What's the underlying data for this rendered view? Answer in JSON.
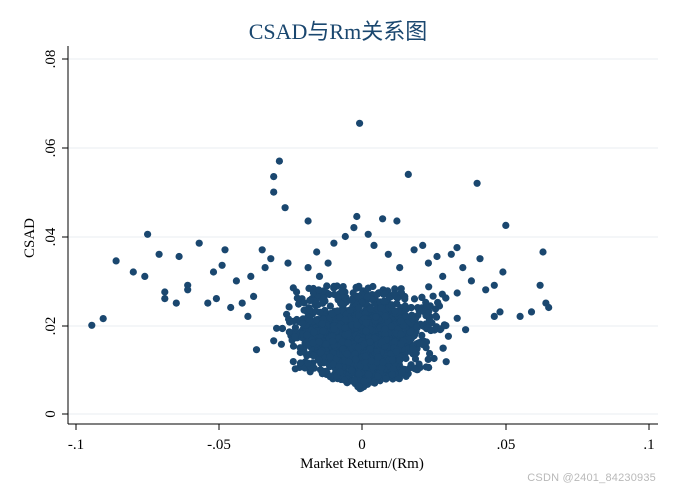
{
  "chart_data": {
    "type": "scatter",
    "title": "CSAD与Rm关系图",
    "xlabel": "Market Return/(Rm)",
    "ylabel": "CSAD",
    "xlim": [
      -0.1,
      0.1
    ],
    "ylim": [
      0,
      0.08
    ],
    "x_ticks": [
      "-.1",
      "-.05",
      "0",
      ".05",
      ".1"
    ],
    "y_ticks": [
      "0",
      ".02",
      ".04",
      ".06",
      ".08"
    ],
    "grid": true,
    "marker_color": "#1a476f",
    "grid_color": "#e8eef2",
    "points": [
      [
        -0.0945,
        0.02
      ],
      [
        -0.0905,
        0.0215
      ],
      [
        -0.086,
        0.0345
      ],
      [
        -0.08,
        0.032
      ],
      [
        -0.076,
        0.031
      ],
      [
        -0.075,
        0.0405
      ],
      [
        -0.071,
        0.036
      ],
      [
        -0.069,
        0.026
      ],
      [
        -0.069,
        0.0275
      ],
      [
        -0.065,
        0.025
      ],
      [
        -0.064,
        0.0355
      ],
      [
        -0.061,
        0.029
      ],
      [
        -0.061,
        0.028
      ],
      [
        -0.057,
        0.0385
      ],
      [
        -0.054,
        0.025
      ],
      [
        -0.052,
        0.032
      ],
      [
        -0.051,
        0.026
      ],
      [
        -0.049,
        0.0335
      ],
      [
        -0.048,
        0.037
      ],
      [
        -0.046,
        0.024
      ],
      [
        -0.044,
        0.03
      ],
      [
        -0.042,
        0.025
      ],
      [
        -0.04,
        0.022
      ],
      [
        -0.039,
        0.031
      ],
      [
        -0.038,
        0.0265
      ],
      [
        -0.035,
        0.037
      ],
      [
        -0.034,
        0.033
      ],
      [
        -0.032,
        0.035
      ],
      [
        -0.031,
        0.0535
      ],
      [
        -0.031,
        0.05
      ],
      [
        -0.029,
        0.057
      ],
      [
        -0.027,
        0.0465
      ],
      [
        -0.026,
        0.034
      ],
      [
        -0.023,
        0.0275
      ],
      [
        -0.019,
        0.0435
      ],
      [
        -0.019,
        0.033
      ],
      [
        -0.016,
        0.0365
      ],
      [
        -0.015,
        0.031
      ],
      [
        -0.012,
        0.034
      ],
      [
        -0.01,
        0.0385
      ],
      [
        -0.006,
        0.04
      ],
      [
        -0.003,
        0.042
      ],
      [
        -0.002,
        0.0445
      ],
      [
        -0.001,
        0.0655
      ],
      [
        0.002,
        0.0405
      ],
      [
        0.004,
        0.038
      ],
      [
        0.007,
        0.044
      ],
      [
        0.009,
        0.036
      ],
      [
        0.012,
        0.0435
      ],
      [
        0.013,
        0.033
      ],
      [
        0.016,
        0.054
      ],
      [
        0.018,
        0.037
      ],
      [
        0.021,
        0.038
      ],
      [
        0.023,
        0.034
      ],
      [
        0.026,
        0.0355
      ],
      [
        0.028,
        0.031
      ],
      [
        0.031,
        0.036
      ],
      [
        0.033,
        0.0375
      ],
      [
        0.035,
        0.033
      ],
      [
        0.038,
        0.03
      ],
      [
        0.04,
        0.052
      ],
      [
        0.041,
        0.035
      ],
      [
        0.043,
        0.028
      ],
      [
        0.046,
        0.029
      ],
      [
        0.048,
        0.023
      ],
      [
        0.049,
        0.032
      ],
      [
        0.05,
        0.0425
      ],
      [
        0.055,
        0.022
      ],
      [
        0.059,
        0.023
      ],
      [
        0.062,
        0.029
      ],
      [
        0.063,
        0.0365
      ],
      [
        0.064,
        0.025
      ],
      [
        0.065,
        0.024
      ],
      [
        0.046,
        0.022
      ],
      [
        0.036,
        0.019
      ],
      [
        -0.037,
        0.0145
      ],
      [
        -0.031,
        0.0165
      ],
      [
        0.03,
        0.0175
      ],
      [
        0.025,
        0.0125
      ],
      [
        -0.022,
        0.0105
      ]
    ],
    "cluster": {
      "center_x": 0.0,
      "x_spread": 0.01,
      "y_min": 0.0055,
      "y_max": 0.029,
      "count": 2400
    }
  },
  "watermark": "CSDN @2401_84230935"
}
